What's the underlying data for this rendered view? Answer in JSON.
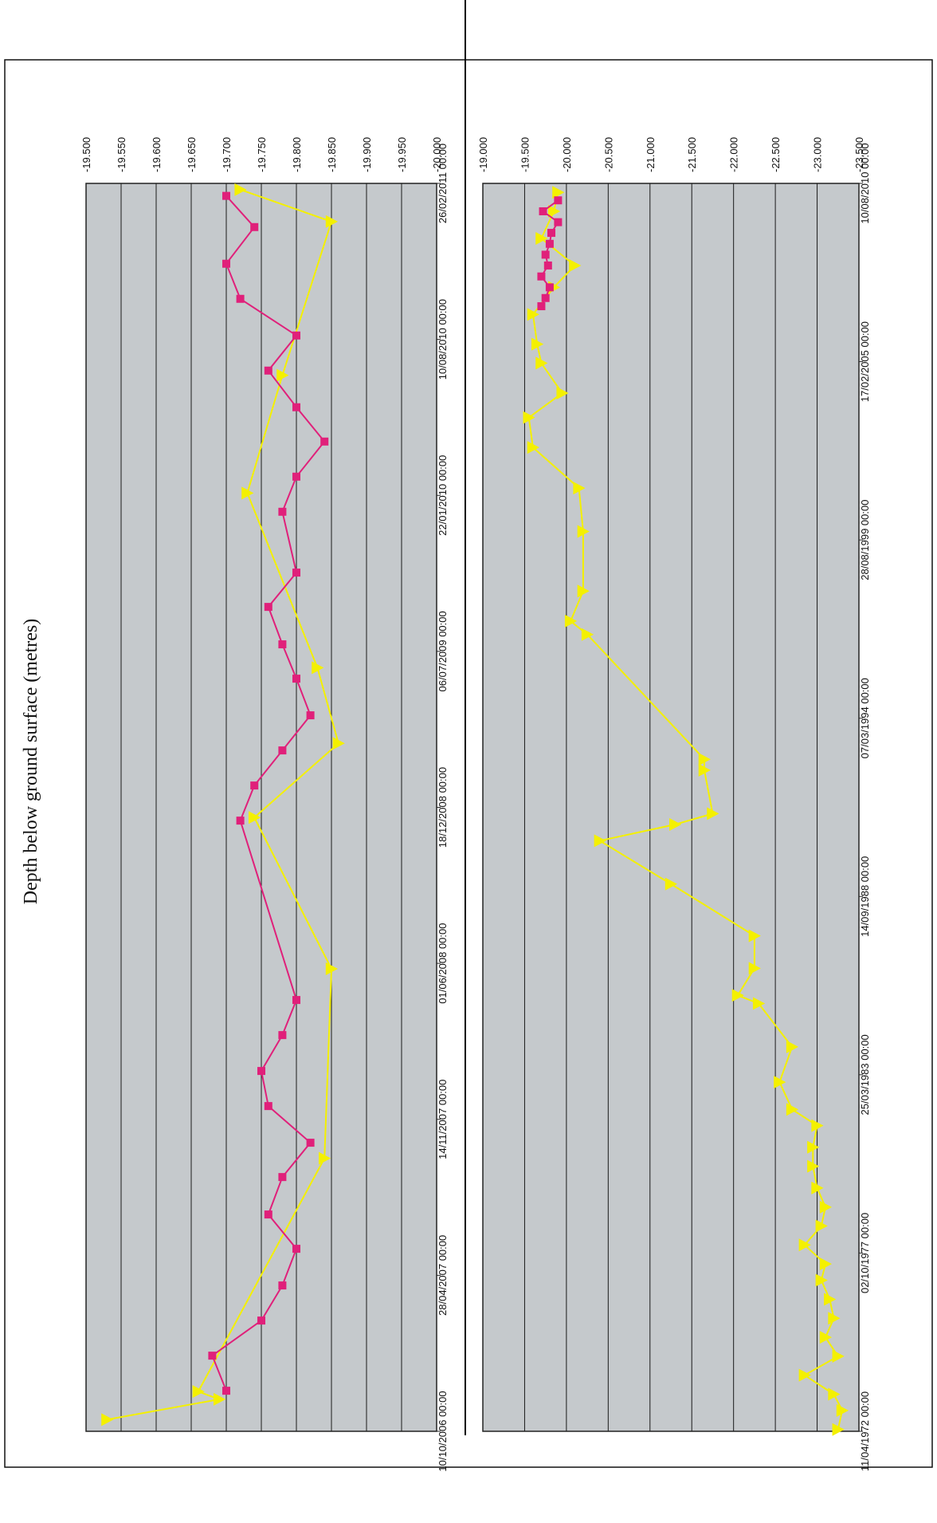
{
  "y_axis_title": "Depth below ground surface (metres)",
  "colors": {
    "plot_bg": "#c5c9cc",
    "gridline": "#1a1a1a",
    "series_yellow": "#f4f000",
    "series_magenta": "#e0207a"
  },
  "chart_data": [
    {
      "type": "scatter",
      "title": "",
      "xlabel": "",
      "ylabel": "Depth below ground surface (metres)",
      "orientation": "rotated 180 degrees",
      "grid": true,
      "legend": "none",
      "x_type": "date",
      "xlim": [
        "1972-04-11",
        "2010-08-10"
      ],
      "ylim": [
        -23.5,
        -19.0
      ],
      "x_tick_labels": [
        "11/04/1972 00:00",
        "02/10/1977 00:00",
        "25/03/1983 00:00",
        "14/09/1988 00:00",
        "07/03/1994 00:00",
        "28/08/1999 00:00",
        "17/02/2005 00:00",
        "10/08/2010 00:00"
      ],
      "y_tick_labels": [
        "-19.000",
        "-19.500",
        "-20.000",
        "-20.500",
        "-21.000",
        "-21.500",
        "-22.000",
        "-22.500",
        "-23.000",
        "-23.500"
      ],
      "series": [
        {
          "color": "yellow",
          "marker": "triangle",
          "x": [
            "1972-05-01",
            "1972-12-01",
            "1973-06-01",
            "1974-01-01",
            "1974-08-01",
            "1975-03-01",
            "1975-10-01",
            "1976-05-01",
            "1976-12-01",
            "1977-06-01",
            "1978-01-01",
            "1978-08-01",
            "1979-03-01",
            "1979-10-01",
            "1980-06-01",
            "1981-01-01",
            "1981-09-01",
            "1982-03-01",
            "1983-01-01",
            "1984-02-01",
            "1985-06-01",
            "1985-09-01",
            "1986-07-01",
            "1987-07-01",
            "1989-02-01",
            "1990-06-01",
            "1990-12-01",
            "1991-04-01",
            "1992-08-01",
            "1992-12-01",
            "1996-10-01",
            "1997-03-01",
            "1998-02-01",
            "1999-12-01",
            "2001-04-01",
            "2002-07-01",
            "2003-06-01",
            "2004-03-01",
            "2005-02-01",
            "2005-09-01",
            "2006-08-01",
            "2007-06-01",
            "2008-02-01",
            "2008-12-01",
            "2009-10-01",
            "2010-05-01"
          ],
          "y": [
            -23.25,
            -23.3,
            -23.2,
            -22.85,
            -23.25,
            -23.1,
            -23.2,
            -23.15,
            -23.05,
            -23.1,
            -22.85,
            -23.05,
            -23.1,
            -23.0,
            -22.95,
            -22.95,
            -23.0,
            -22.7,
            -22.55,
            -22.7,
            -22.3,
            -22.05,
            -22.25,
            -22.25,
            -21.25,
            -20.4,
            -21.3,
            -21.75,
            -21.65,
            -21.65,
            -20.25,
            -20.05,
            -20.2,
            -20.2,
            -20.15,
            -19.6,
            -19.55,
            -19.95,
            -19.7,
            -19.65,
            -19.6,
            -19.85,
            -20.1,
            -19.7,
            -19.85,
            -19.9
          ]
        },
        {
          "color": "magenta",
          "marker": "square",
          "x": [
            "2006-11-01",
            "2007-02-01",
            "2007-06-01",
            "2007-10-01",
            "2008-02-01",
            "2008-06-01",
            "2008-10-01",
            "2009-02-01",
            "2009-06-01",
            "2009-10-01",
            "2010-02-01"
          ],
          "y": [
            -19.7,
            -19.75,
            -19.8,
            -19.7,
            -19.78,
            -19.75,
            -19.8,
            -19.82,
            -19.9,
            -19.72,
            -19.9
          ]
        }
      ]
    },
    {
      "type": "scatter",
      "title": "",
      "xlabel": "",
      "ylabel": "Depth below ground surface (metres)",
      "orientation": "rotated 180 degrees",
      "grid": true,
      "legend": "none",
      "x_type": "date",
      "xlim": [
        "2006-10-10",
        "2011-02-26"
      ],
      "ylim": [
        -20.0,
        -19.5
      ],
      "x_tick_labels": [
        "10/10/2006 00:00",
        "28/04/2007 00:00",
        "14/11/2007 00:00",
        "01/06/2008 00:00",
        "18/12/2008 00:00",
        "06/07/2009 00:00",
        "22/01/2010 00:00",
        "10/08/2010 00:00",
        "26/02/2011 00:00"
      ],
      "y_tick_labels": [
        "-19.500",
        "-19.550",
        "-19.600",
        "-19.650",
        "-19.700",
        "-19.750",
        "-19.800",
        "-19.850",
        "-19.900",
        "-19.950",
        "-20.000"
      ],
      "series": [
        {
          "color": "yellow",
          "marker": "triangle",
          "x": [
            "2006-10-25",
            "2006-11-20",
            "2006-11-30",
            "2007-09-25",
            "2008-05-25",
            "2008-12-05",
            "2009-03-10",
            "2009-06-15",
            "2010-01-25",
            "2010-06-25",
            "2011-01-08",
            "2011-02-18"
          ],
          "y": [
            -19.53,
            -19.69,
            -19.66,
            -19.84,
            -19.85,
            -19.74,
            -19.86,
            -19.83,
            -19.73,
            -19.78,
            -19.85,
            -19.72
          ]
        },
        {
          "color": "magenta",
          "marker": "square",
          "x": [
            "2006-12-01",
            "2007-01-15",
            "2007-03-01",
            "2007-04-15",
            "2007-06-01",
            "2007-07-15",
            "2007-09-01",
            "2007-10-15",
            "2007-12-01",
            "2008-01-15",
            "2008-03-01",
            "2008-04-15",
            "2008-12-01",
            "2009-01-15",
            "2009-03-01",
            "2009-04-15",
            "2009-06-01",
            "2009-07-15",
            "2009-09-01",
            "2009-10-15",
            "2010-01-01",
            "2010-02-15",
            "2010-04-01",
            "2010-05-15",
            "2010-07-01",
            "2010-08-15",
            "2010-10-01",
            "2010-11-15",
            "2011-01-01",
            "2011-02-10"
          ],
          "y": [
            -19.7,
            -19.68,
            -19.75,
            -19.78,
            -19.8,
            -19.76,
            -19.78,
            -19.82,
            -19.76,
            -19.75,
            -19.78,
            -19.8,
            -19.72,
            -19.74,
            -19.78,
            -19.82,
            -19.8,
            -19.78,
            -19.76,
            -19.8,
            -19.78,
            -19.8,
            -19.84,
            -19.8,
            -19.76,
            -19.8,
            -19.72,
            -19.7,
            -19.74,
            -19.7
          ]
        }
      ]
    }
  ]
}
